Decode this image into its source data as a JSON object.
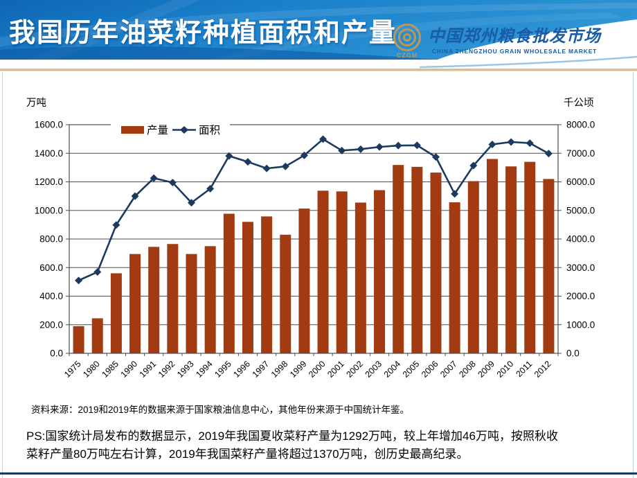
{
  "header": {
    "title": "我国历年油菜籽种植面积和产量",
    "logo": {
      "monogram": "CZGM",
      "name_cn": "中国郑州粮食批发市场",
      "name_en": "CHINA ZHENGZHOU GRAIN WHOLESALE MARKET"
    }
  },
  "chart_data": {
    "type": "bar",
    "title": "",
    "categories": [
      "1975",
      "1980",
      "1985",
      "1990",
      "1991",
      "1992",
      "1993",
      "1994",
      "1995",
      "1996",
      "1997",
      "1998",
      "1999",
      "2000",
      "2001",
      "2002",
      "2003",
      "2004",
      "2005",
      "2006",
      "2007",
      "2008",
      "2009",
      "2010",
      "2011",
      "2012"
    ],
    "series": [
      {
        "name": "产量",
        "type": "bar",
        "axis": "left",
        "color": "#A23B11",
        "values": [
          190,
          245,
          560,
          695,
          745,
          765,
          695,
          750,
          977,
          920,
          958,
          830,
          1013,
          1138,
          1133,
          1055,
          1142,
          1318,
          1305,
          1265,
          1057,
          1205,
          1360,
          1308,
          1340,
          1220
        ]
      },
      {
        "name": "面积",
        "type": "line",
        "axis": "right",
        "color": "#1C3A5E",
        "values": [
          2550,
          2845,
          4490,
          5500,
          6130,
          5975,
          5270,
          5760,
          6907,
          6700,
          6470,
          6540,
          6928,
          7494,
          7095,
          7143,
          7221,
          7271,
          7278,
          6870,
          5580,
          6570,
          7310,
          7395,
          7355,
          6990
        ]
      }
    ],
    "left_axis": {
      "label": "万吨",
      "min": 0,
      "max": 1600,
      "step": 200
    },
    "right_axis": {
      "label": "千公顷",
      "min": 0,
      "max": 8000,
      "step": 1000
    },
    "legend_position": "top-center",
    "grid": true,
    "gridline_color": "#4d4d4d",
    "tick_label_color": "#000000"
  },
  "source_note": "资料来源：2019和2019年的数据来源于国家粮油信息中心，其他年份来源于中国统计年鉴。",
  "ps_note_lines": [
    "PS:国家统计局发布的数据显示，2019年我国夏收菜籽产量为1292万吨，较上年增加46万吨，按照秋收",
    "菜籽产量80万吨左右计算，2019年我国菜籽产量将超过1370万吨，创历史最高纪录。"
  ],
  "colors": {
    "header_blue_dark": "#0E66B4",
    "header_blue_light": "#2F95D5",
    "header_gold_rule": "#D6BF8C",
    "logo_blue": "#1A5DA6",
    "logo_gold": "#BE9755",
    "bottom_rule": "#17375E"
  }
}
